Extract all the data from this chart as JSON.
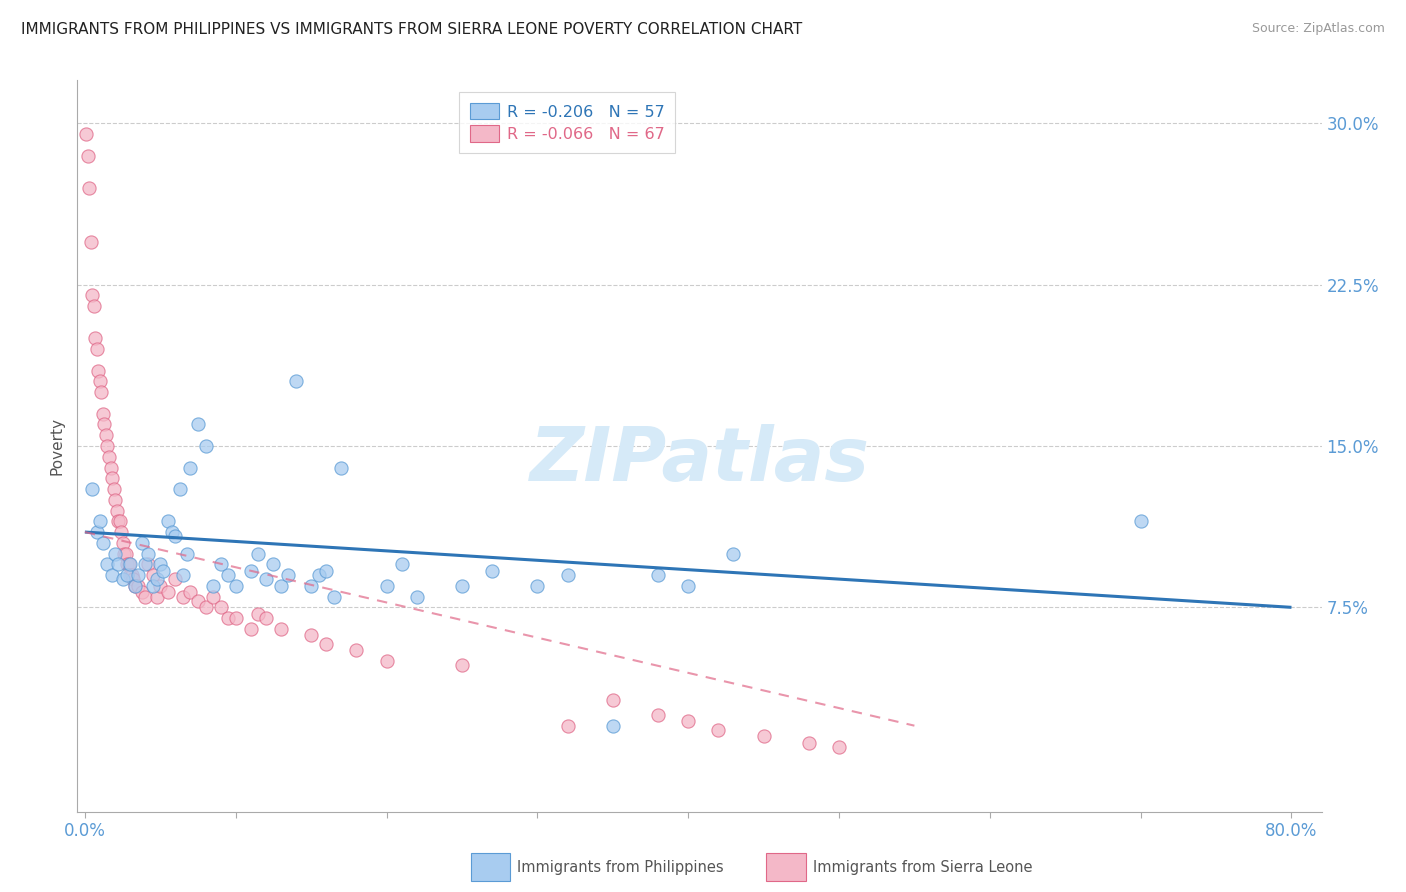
{
  "title": "IMMIGRANTS FROM PHILIPPINES VS IMMIGRANTS FROM SIERRA LEONE POVERTY CORRELATION CHART",
  "source": "Source: ZipAtlas.com",
  "ylabel": "Poverty",
  "ylim": [
    -0.02,
    0.32
  ],
  "xlim": [
    -0.005,
    0.82
  ],
  "ytick_vals": [
    0.075,
    0.15,
    0.225,
    0.3
  ],
  "ytick_labels": [
    "7.5%",
    "15.0%",
    "22.5%",
    "30.0%"
  ],
  "xtick_vals": [
    0.0,
    0.8
  ],
  "xtick_labels": [
    "0.0%",
    "80.0%"
  ],
  "legend_r_phil": "R = -0.206",
  "legend_n_phil": "N = 57",
  "legend_r_sierra": "R = -0.066",
  "legend_n_sierra": "N = 67",
  "color_philippines": "#A8CCF0",
  "color_philippines_edge": "#5B9BD5",
  "color_sierra_leone": "#F4B8C8",
  "color_sierra_leone_edge": "#E06888",
  "color_line_philippines": "#2E75B6",
  "color_line_sierra_leone": "#F4B8C8",
  "color_ytick": "#5B9BD5",
  "color_xtick": "#5B9BD5",
  "watermark_color": "#D6EAF8",
  "philippines_x": [
    0.005,
    0.008,
    0.01,
    0.012,
    0.015,
    0.018,
    0.02,
    0.022,
    0.025,
    0.028,
    0.03,
    0.033,
    0.035,
    0.038,
    0.04,
    0.042,
    0.045,
    0.048,
    0.05,
    0.052,
    0.055,
    0.058,
    0.06,
    0.063,
    0.065,
    0.068,
    0.07,
    0.075,
    0.08,
    0.085,
    0.09,
    0.095,
    0.1,
    0.11,
    0.115,
    0.12,
    0.125,
    0.13,
    0.135,
    0.14,
    0.15,
    0.155,
    0.16,
    0.165,
    0.17,
    0.2,
    0.21,
    0.22,
    0.25,
    0.27,
    0.3,
    0.32,
    0.35,
    0.38,
    0.4,
    0.43,
    0.7
  ],
  "philippines_y": [
    0.13,
    0.11,
    0.115,
    0.105,
    0.095,
    0.09,
    0.1,
    0.095,
    0.088,
    0.09,
    0.095,
    0.085,
    0.09,
    0.105,
    0.095,
    0.1,
    0.085,
    0.088,
    0.095,
    0.092,
    0.115,
    0.11,
    0.108,
    0.13,
    0.09,
    0.1,
    0.14,
    0.16,
    0.15,
    0.085,
    0.095,
    0.09,
    0.085,
    0.092,
    0.1,
    0.088,
    0.095,
    0.085,
    0.09,
    0.18,
    0.085,
    0.09,
    0.092,
    0.08,
    0.14,
    0.085,
    0.095,
    0.08,
    0.085,
    0.092,
    0.085,
    0.09,
    0.02,
    0.09,
    0.085,
    0.1,
    0.115
  ],
  "sierra_leone_x": [
    0.001,
    0.002,
    0.003,
    0.004,
    0.005,
    0.006,
    0.007,
    0.008,
    0.009,
    0.01,
    0.011,
    0.012,
    0.013,
    0.014,
    0.015,
    0.016,
    0.017,
    0.018,
    0.019,
    0.02,
    0.021,
    0.022,
    0.023,
    0.024,
    0.025,
    0.026,
    0.027,
    0.028,
    0.029,
    0.03,
    0.031,
    0.032,
    0.033,
    0.035,
    0.038,
    0.04,
    0.042,
    0.045,
    0.048,
    0.05,
    0.055,
    0.06,
    0.065,
    0.07,
    0.075,
    0.08,
    0.085,
    0.09,
    0.095,
    0.1,
    0.11,
    0.115,
    0.12,
    0.13,
    0.15,
    0.16,
    0.18,
    0.2,
    0.25,
    0.32,
    0.35,
    0.38,
    0.4,
    0.42,
    0.45,
    0.48,
    0.5
  ],
  "sierra_leone_y": [
    0.295,
    0.285,
    0.27,
    0.245,
    0.22,
    0.215,
    0.2,
    0.195,
    0.185,
    0.18,
    0.175,
    0.165,
    0.16,
    0.155,
    0.15,
    0.145,
    0.14,
    0.135,
    0.13,
    0.125,
    0.12,
    0.115,
    0.115,
    0.11,
    0.105,
    0.1,
    0.1,
    0.095,
    0.095,
    0.09,
    0.09,
    0.088,
    0.085,
    0.085,
    0.082,
    0.08,
    0.095,
    0.09,
    0.08,
    0.085,
    0.082,
    0.088,
    0.08,
    0.082,
    0.078,
    0.075,
    0.08,
    0.075,
    0.07,
    0.07,
    0.065,
    0.072,
    0.07,
    0.065,
    0.062,
    0.058,
    0.055,
    0.05,
    0.048,
    0.02,
    0.032,
    0.025,
    0.022,
    0.018,
    0.015,
    0.012,
    0.01
  ]
}
